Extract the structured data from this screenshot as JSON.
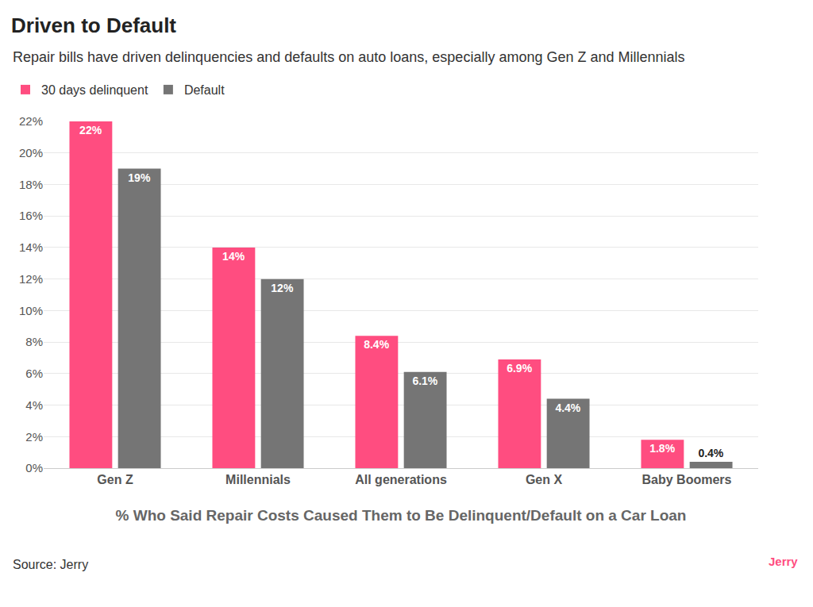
{
  "chart_data": {
    "type": "bar",
    "title": "Driven to Default",
    "subtitle": "Repair bills have driven delinquencies and defaults on auto loans, especially among Gen Z and Millennials",
    "x_label": "% Who Said Repair Costs Caused Them to Be Delinquent/Default on a Car Loan",
    "annotations": [
      "Source: Jerry",
      "Jerry"
    ],
    "categories": [
      "Gen Z",
      "Millennials",
      "All generations",
      "Gen X",
      "Baby Boomers"
    ],
    "series": [
      {
        "name": "30 days delinquent",
        "color": "#ff4d80",
        "values": [
          22,
          14,
          8.4,
          6.9,
          1.8
        ],
        "value_labels": [
          "22%",
          "14%",
          "8.4%",
          "6.9%",
          "1.8%"
        ]
      },
      {
        "name": "Default",
        "color": "#757575",
        "values": [
          19,
          12,
          6.1,
          4.4,
          0.4
        ],
        "value_labels": [
          "19%",
          "12%",
          "6.1%",
          "4.4%",
          "0.4%"
        ]
      }
    ],
    "ylim": [
      0,
      22
    ],
    "yticks": [
      {
        "value": 0,
        "label": "0%"
      },
      {
        "value": 2,
        "label": "2%"
      },
      {
        "value": 4,
        "label": "4%"
      },
      {
        "value": 6,
        "label": "6%"
      },
      {
        "value": 8,
        "label": "8%"
      },
      {
        "value": 10,
        "label": "10%"
      },
      {
        "value": 12,
        "label": "12%"
      },
      {
        "value": 14,
        "label": "14%"
      },
      {
        "value": 16,
        "label": "16%"
      },
      {
        "value": 18,
        "label": "18%"
      },
      {
        "value": 20,
        "label": "20%"
      },
      {
        "value": 22,
        "label": "22%"
      }
    ],
    "grid": true,
    "legend": "top left",
    "data_labels": true
  }
}
